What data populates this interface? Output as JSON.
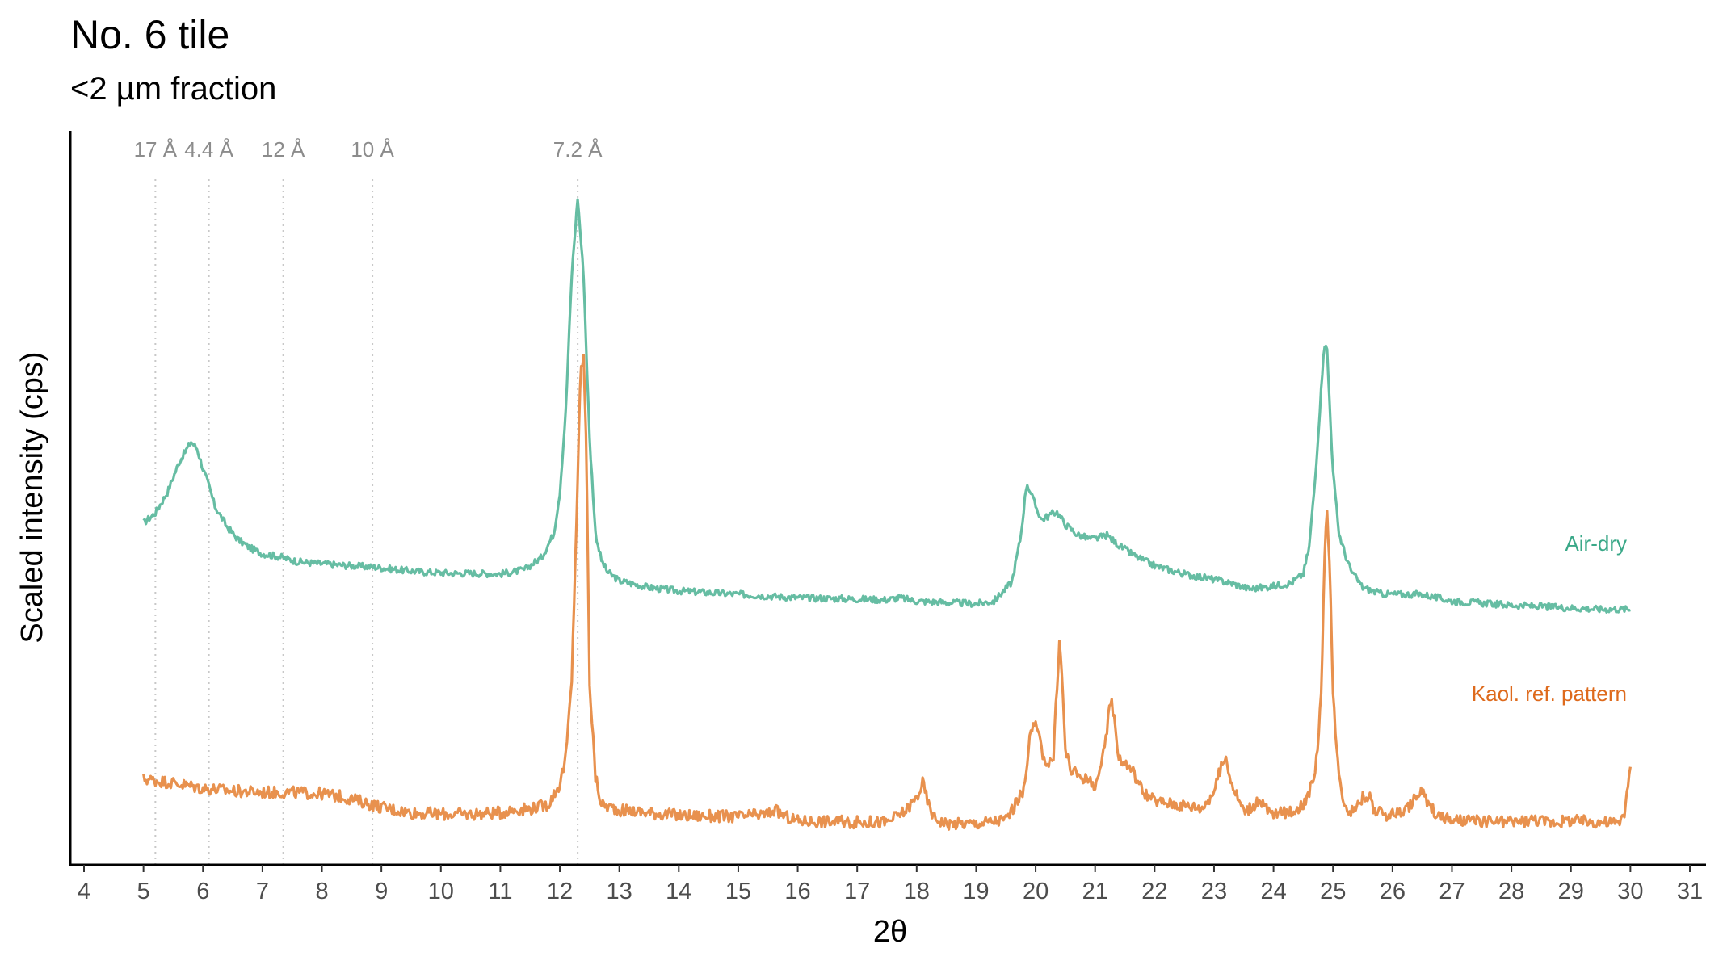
{
  "chart_data": {
    "type": "line",
    "title": "No. 6 tile",
    "subtitle": "<2 µm fraction",
    "xlabel": "2θ",
    "ylabel": "Scaled intensity (cps)",
    "xlim": [
      4,
      31
    ],
    "x_ticks": [
      4,
      5,
      6,
      7,
      8,
      9,
      10,
      11,
      12,
      13,
      14,
      15,
      16,
      17,
      18,
      19,
      20,
      21,
      22,
      23,
      24,
      25,
      26,
      27,
      28,
      29,
      30,
      31
    ],
    "y_ticks_shown": false,
    "grid": false,
    "annotations": [
      {
        "label": "17 Å",
        "x": 5.2
      },
      {
        "label": "4.4 Å",
        "x": 6.1
      },
      {
        "label": "12 Å",
        "x": 7.35
      },
      {
        "label": "10 Å",
        "x": 8.85
      },
      {
        "label": "7.2 Å",
        "x": 12.3
      }
    ],
    "series": [
      {
        "name": "Air-dry",
        "color": "#66bda3",
        "x": [
          5.0,
          5.2,
          5.4,
          5.6,
          5.8,
          5.9,
          6.0,
          6.1,
          6.2,
          6.4,
          6.6,
          6.8,
          7.0,
          7.3,
          7.6,
          8.0,
          8.5,
          8.9,
          9.0,
          9.3,
          9.7,
          10.2,
          10.6,
          11.0,
          11.4,
          11.7,
          11.9,
          12.0,
          12.1,
          12.2,
          12.3,
          12.4,
          12.5,
          12.6,
          12.7,
          12.8,
          13.0,
          13.5,
          14.0,
          15.0,
          16.0,
          17.0,
          17.5,
          17.7,
          18.0,
          19.0,
          19.3,
          19.6,
          19.75,
          19.85,
          20.0,
          20.1,
          20.2,
          20.35,
          20.5,
          20.7,
          20.9,
          21.0,
          21.2,
          21.4,
          21.7,
          22.0,
          22.5,
          23.0,
          23.3,
          23.6,
          24.0,
          24.3,
          24.5,
          24.6,
          24.7,
          24.8,
          24.85,
          24.9,
          25.0,
          25.1,
          25.2,
          25.3,
          25.5,
          25.8,
          26.0,
          26.5,
          27.0,
          28.0,
          29.0,
          29.5,
          30.0
        ],
        "y": [
          0.455,
          0.47,
          0.5,
          0.545,
          0.575,
          0.565,
          0.535,
          0.51,
          0.48,
          0.45,
          0.43,
          0.418,
          0.41,
          0.405,
          0.398,
          0.395,
          0.392,
          0.39,
          0.389,
          0.386,
          0.383,
          0.381,
          0.381,
          0.38,
          0.386,
          0.405,
          0.44,
          0.5,
          0.62,
          0.82,
          0.935,
          0.82,
          0.58,
          0.44,
          0.4,
          0.383,
          0.37,
          0.36,
          0.355,
          0.35,
          0.345,
          0.343,
          0.342,
          0.345,
          0.34,
          0.336,
          0.34,
          0.368,
          0.435,
          0.515,
          0.48,
          0.46,
          0.465,
          0.472,
          0.453,
          0.438,
          0.432,
          0.432,
          0.437,
          0.422,
          0.405,
          0.392,
          0.38,
          0.372,
          0.366,
          0.358,
          0.362,
          0.367,
          0.38,
          0.42,
          0.52,
          0.65,
          0.72,
          0.71,
          0.53,
          0.44,
          0.41,
          0.385,
          0.36,
          0.351,
          0.35,
          0.35,
          0.34,
          0.334,
          0.33,
          0.328,
          0.328
        ]
      },
      {
        "name": "Kaol. ref. pattern",
        "color": "#e8914e",
        "x": [
          5.0,
          5.5,
          6.0,
          6.5,
          7.0,
          7.5,
          8.0,
          8.3,
          8.6,
          9.0,
          9.5,
          10.0,
          10.5,
          11.0,
          11.2,
          11.5,
          11.8,
          12.0,
          12.1,
          12.2,
          12.3,
          12.35,
          12.4,
          12.45,
          12.5,
          12.6,
          12.7,
          13.0,
          13.5,
          14.0,
          15.0,
          15.5,
          15.6,
          15.8,
          16.0,
          17.0,
          17.5,
          17.8,
          18.0,
          18.1,
          18.2,
          18.3,
          18.5,
          19.0,
          19.5,
          19.8,
          19.9,
          20.0,
          20.1,
          20.2,
          20.3,
          20.35,
          20.4,
          20.45,
          20.5,
          20.6,
          20.8,
          21.0,
          21.1,
          21.2,
          21.25,
          21.3,
          21.4,
          21.5,
          21.6,
          21.8,
          22.0,
          22.4,
          22.8,
          23.0,
          23.1,
          23.2,
          23.3,
          23.5,
          23.7,
          23.8,
          23.9,
          24.0,
          24.3,
          24.5,
          24.7,
          24.8,
          24.85,
          24.9,
          24.95,
          25.0,
          25.1,
          25.2,
          25.3,
          25.5,
          25.6,
          25.7,
          25.9,
          26.2,
          26.4,
          26.5,
          26.6,
          26.8,
          27.0,
          28.0,
          28.4,
          28.6,
          29.0,
          29.5,
          29.8,
          29.9,
          29.95,
          30.0
        ],
        "y": [
          0.078,
          0.072,
          0.064,
          0.06,
          0.058,
          0.058,
          0.056,
          0.052,
          0.046,
          0.036,
          0.028,
          0.026,
          0.026,
          0.028,
          0.032,
          0.034,
          0.04,
          0.07,
          0.11,
          0.22,
          0.52,
          0.68,
          0.7,
          0.55,
          0.22,
          0.08,
          0.04,
          0.032,
          0.028,
          0.024,
          0.022,
          0.026,
          0.032,
          0.022,
          0.016,
          0.014,
          0.014,
          0.03,
          0.05,
          0.072,
          0.04,
          0.02,
          0.012,
          0.012,
          0.018,
          0.06,
          0.14,
          0.16,
          0.12,
          0.1,
          0.11,
          0.2,
          0.28,
          0.22,
          0.12,
          0.09,
          0.08,
          0.07,
          0.09,
          0.15,
          0.2,
          0.18,
          0.11,
          0.1,
          0.095,
          0.06,
          0.045,
          0.04,
          0.035,
          0.06,
          0.09,
          0.11,
          0.07,
          0.03,
          0.04,
          0.045,
          0.03,
          0.025,
          0.03,
          0.04,
          0.08,
          0.2,
          0.38,
          0.48,
          0.38,
          0.2,
          0.08,
          0.04,
          0.03,
          0.05,
          0.055,
          0.03,
          0.025,
          0.03,
          0.05,
          0.06,
          0.04,
          0.022,
          0.016,
          0.014,
          0.018,
          0.014,
          0.016,
          0.014,
          0.012,
          0.03,
          0.06,
          0.09
        ]
      }
    ]
  }
}
